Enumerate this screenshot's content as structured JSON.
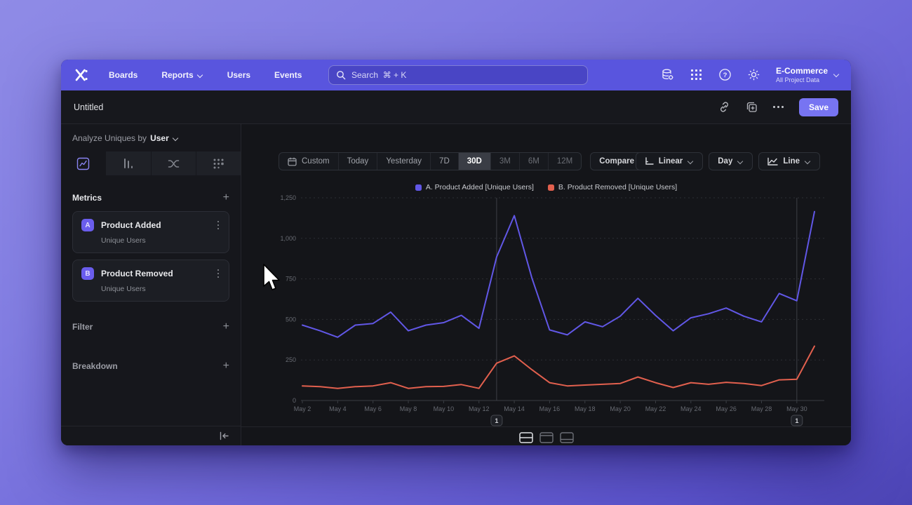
{
  "nav": {
    "items": [
      "Boards",
      "Reports",
      "Users",
      "Events"
    ],
    "search_placeholder": "Search  ⌘ + K",
    "project": {
      "name": "E-Commerce",
      "subtitle": "All Project Data"
    }
  },
  "titlebar": {
    "title": "Untitled",
    "save_label": "Save"
  },
  "sidebar": {
    "analyze_prefix": "Analyze Uniques by",
    "analyze_value": "User",
    "metrics_label": "Metrics",
    "metrics": [
      {
        "badge": "A",
        "name": "Product Added",
        "sub": "Unique Users"
      },
      {
        "badge": "B",
        "name": "Product Removed",
        "sub": "Unique Users"
      }
    ],
    "filter_label": "Filter",
    "breakdown_label": "Breakdown"
  },
  "toolbar": {
    "ranges": [
      "Custom",
      "Today",
      "Yesterday",
      "7D",
      "30D",
      "3M",
      "6M",
      "12M"
    ],
    "selected_range": "30D",
    "compare_label": "Compare",
    "scale_label": "Linear",
    "granularity_label": "Day",
    "chart_type_label": "Line"
  },
  "chart_data": {
    "type": "line",
    "title": "",
    "x": [
      "May 2",
      "May 3",
      "May 4",
      "May 5",
      "May 6",
      "May 7",
      "May 8",
      "May 9",
      "May 10",
      "May 11",
      "May 12",
      "May 13",
      "May 14",
      "May 15",
      "May 16",
      "May 17",
      "May 18",
      "May 19",
      "May 20",
      "May 21",
      "May 22",
      "May 23",
      "May 24",
      "May 25",
      "May 26",
      "May 27",
      "May 28",
      "May 29",
      "May 30",
      "May 31"
    ],
    "series": [
      {
        "name": "A. Product Added [Unique Users]",
        "color": "#6157e6",
        "values": [
          465,
          430,
          390,
          465,
          475,
          545,
          430,
          465,
          480,
          525,
          445,
          885,
          1140,
          755,
          435,
          405,
          485,
          455,
          520,
          630,
          525,
          430,
          510,
          535,
          570,
          520,
          485,
          660,
          615,
          1165
        ]
      },
      {
        "name": "B. Product Removed [Unique Users]",
        "color": "#e2604e",
        "values": [
          90,
          85,
          75,
          85,
          90,
          110,
          75,
          85,
          87,
          98,
          75,
          230,
          275,
          190,
          110,
          90,
          95,
          100,
          105,
          145,
          110,
          80,
          110,
          100,
          112,
          105,
          92,
          127,
          131,
          335
        ]
      }
    ],
    "ylim": [
      0,
      1250
    ],
    "yticks": [
      0,
      250,
      500,
      750,
      1000,
      1250
    ],
    "ytick_labels": [
      "0",
      "250",
      "500",
      "750",
      "1,000",
      "1,250"
    ],
    "xtick_every": 2,
    "legend_position": "top-center",
    "grid": "horizontal-dashed",
    "annotations": [
      {
        "index": 11,
        "label": "1"
      },
      {
        "index": 28,
        "label": "1"
      }
    ]
  }
}
